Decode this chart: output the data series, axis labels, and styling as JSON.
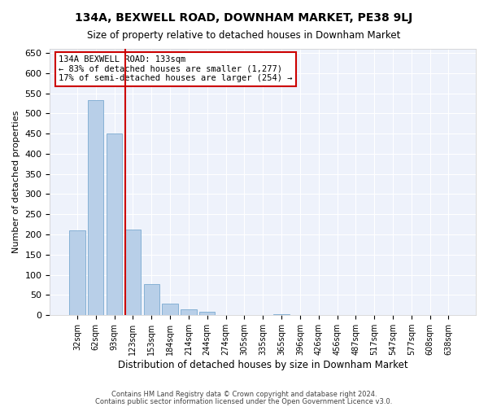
{
  "title": "134A, BEXWELL ROAD, DOWNHAM MARKET, PE38 9LJ",
  "subtitle": "Size of property relative to detached houses in Downham Market",
  "xlabel": "Distribution of detached houses by size in Downham Market",
  "ylabel": "Number of detached properties",
  "bar_color": "#b8cfe8",
  "bar_edge_color": "#7aaad0",
  "background_color": "#ffffff",
  "plot_bg_color": "#eef2fb",
  "grid_color": "#ffffff",
  "annotation_box_color": "#cc0000",
  "annotation_line_color": "#cc0000",
  "categories": [
    "32sqm",
    "62sqm",
    "93sqm",
    "123sqm",
    "153sqm",
    "184sqm",
    "214sqm",
    "244sqm",
    "274sqm",
    "305sqm",
    "335sqm",
    "365sqm",
    "396sqm",
    "426sqm",
    "456sqm",
    "487sqm",
    "517sqm",
    "547sqm",
    "577sqm",
    "608sqm",
    "638sqm"
  ],
  "values": [
    210,
    533,
    450,
    213,
    78,
    28,
    15,
    8,
    0,
    0,
    0,
    2,
    0,
    0,
    0,
    0,
    1,
    0,
    0,
    1,
    0
  ],
  "ylim": [
    0,
    660
  ],
  "yticks": [
    0,
    50,
    100,
    150,
    200,
    250,
    300,
    350,
    400,
    450,
    500,
    550,
    600,
    650
  ],
  "vline_x": 2.575,
  "annotation_title": "134A BEXWELL ROAD: 133sqm",
  "annotation_line1": "← 83% of detached houses are smaller (1,277)",
  "annotation_line2": "17% of semi-detached houses are larger (254) →",
  "footer1": "Contains HM Land Registry data © Crown copyright and database right 2024.",
  "footer2": "Contains public sector information licensed under the Open Government Licence v3.0."
}
